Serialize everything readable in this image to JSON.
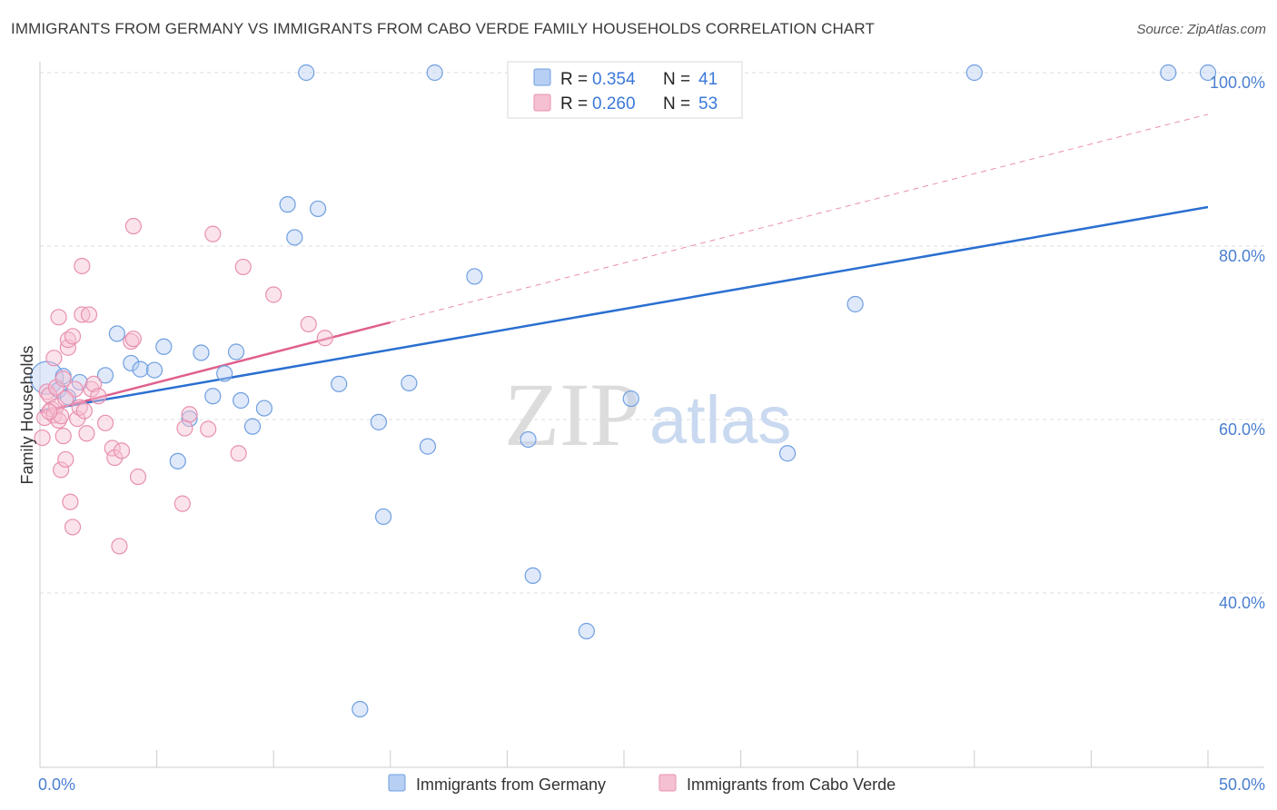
{
  "header": {
    "title": "IMMIGRANTS FROM GERMANY VS IMMIGRANTS FROM CABO VERDE FAMILY HOUSEHOLDS CORRELATION CHART",
    "source": "Source: ZipAtlas.com"
  },
  "watermark": {
    "zip": "ZIP",
    "atlas": "atlas"
  },
  "colors": {
    "blue": "#6f9fe0",
    "blue_fill": "#b7cff3",
    "blue_line": "#2a6fd0",
    "pink": "#e890b0",
    "pink_fill": "#f6c0d3",
    "pink_line": "#e0608e",
    "grid": "#dddddd",
    "tick_text": "#4a7fd0"
  },
  "legend": {
    "r_label": "R =",
    "n_label": "N =",
    "series": [
      {
        "r": "0.354",
        "n": "41"
      },
      {
        "r": "0.260",
        "n": "53"
      }
    ]
  },
  "bottom_legend": [
    "Immigrants from Germany",
    "Immigrants from Cabo Verde"
  ],
  "chart_data": {
    "type": "scatter",
    "title": "IMMIGRANTS FROM GERMANY VS IMMIGRANTS FROM CABO VERDE FAMILY HOUSEHOLDS CORRELATION CHART",
    "xlabel": "",
    "ylabel": "Family Households",
    "xlim": [
      0,
      50
    ],
    "ylim": [
      18,
      103
    ],
    "x_tick_labels": [
      "0.0%",
      "50.0%"
    ],
    "y_ticks": [
      40,
      60,
      80,
      100
    ],
    "y_tick_labels": [
      "40.0%",
      "60.0%",
      "80.0%",
      "100.0%"
    ],
    "grid": true,
    "legend_position": "top-center",
    "series": [
      {
        "name": "Immigrants from Germany",
        "color": "#6f9fe0",
        "trend": {
          "x": [
            0,
            50
          ],
          "y": [
            61.0,
            84.5
          ],
          "dashed_extension": false
        },
        "points": [
          [
            0.3,
            64.8
          ],
          [
            0.8,
            63.4
          ],
          [
            1.2,
            62.6
          ],
          [
            1.7,
            64.3
          ],
          [
            2.8,
            65.1
          ],
          [
            3.3,
            69.9
          ],
          [
            3.9,
            66.5
          ],
          [
            4.3,
            65.8
          ],
          [
            4.9,
            65.7
          ],
          [
            5.3,
            68.4
          ],
          [
            5.9,
            55.2
          ],
          [
            6.4,
            60.1
          ],
          [
            6.9,
            67.7
          ],
          [
            7.4,
            62.7
          ],
          [
            7.9,
            65.3
          ],
          [
            8.4,
            67.8
          ],
          [
            8.6,
            62.2
          ],
          [
            9.1,
            59.2
          ],
          [
            9.6,
            61.3
          ],
          [
            10.6,
            84.8
          ],
          [
            10.9,
            81.0
          ],
          [
            11.4,
            100.0
          ],
          [
            11.9,
            84.3
          ],
          [
            12.8,
            64.1
          ],
          [
            13.7,
            26.6
          ],
          [
            14.5,
            59.7
          ],
          [
            14.7,
            48.8
          ],
          [
            15.8,
            64.2
          ],
          [
            16.6,
            56.9
          ],
          [
            16.9,
            100.0
          ],
          [
            18.6,
            76.5
          ],
          [
            20.9,
            57.7
          ],
          [
            21.1,
            42.0
          ],
          [
            23.4,
            35.6
          ],
          [
            25.3,
            62.4
          ],
          [
            32.0,
            56.1
          ],
          [
            34.9,
            73.3
          ],
          [
            40.0,
            100.0
          ],
          [
            48.3,
            100.0
          ],
          [
            50.0,
            100.0
          ],
          [
            1.0,
            65.0
          ]
        ]
      },
      {
        "name": "Immigrants from Cabo Verde",
        "color": "#e890b0",
        "trend": {
          "x": [
            0,
            15
          ],
          "y": [
            60.8,
            71.2
          ],
          "dashed_to": [
            50,
            95.2
          ]
        },
        "points": [
          [
            0.1,
            57.9
          ],
          [
            0.2,
            60.2
          ],
          [
            0.3,
            63.2
          ],
          [
            0.4,
            62.8
          ],
          [
            0.5,
            61.2
          ],
          [
            0.6,
            60.5
          ],
          [
            0.6,
            67.1
          ],
          [
            0.7,
            61.5
          ],
          [
            0.7,
            63.7
          ],
          [
            0.8,
            59.9
          ],
          [
            0.8,
            71.8
          ],
          [
            0.9,
            54.2
          ],
          [
            0.9,
            60.4
          ],
          [
            1.0,
            58.1
          ],
          [
            1.0,
            64.7
          ],
          [
            1.1,
            55.4
          ],
          [
            1.2,
            68.3
          ],
          [
            1.2,
            69.2
          ],
          [
            1.3,
            50.5
          ],
          [
            1.4,
            69.6
          ],
          [
            1.4,
            47.6
          ],
          [
            1.5,
            63.5
          ],
          [
            1.6,
            60.1
          ],
          [
            1.7,
            61.4
          ],
          [
            1.8,
            72.1
          ],
          [
            1.8,
            77.7
          ],
          [
            1.9,
            61.0
          ],
          [
            2.0,
            58.4
          ],
          [
            2.1,
            72.1
          ],
          [
            2.2,
            63.5
          ],
          [
            2.3,
            64.1
          ],
          [
            2.5,
            62.7
          ],
          [
            2.8,
            59.6
          ],
          [
            3.1,
            56.7
          ],
          [
            3.2,
            55.6
          ],
          [
            3.4,
            45.4
          ],
          [
            3.5,
            56.4
          ],
          [
            3.9,
            69.0
          ],
          [
            4.0,
            69.3
          ],
          [
            4.0,
            82.3
          ],
          [
            4.2,
            53.4
          ],
          [
            6.1,
            50.3
          ],
          [
            6.2,
            59.0
          ],
          [
            6.4,
            60.6
          ],
          [
            7.2,
            58.9
          ],
          [
            7.4,
            81.4
          ],
          [
            8.5,
            56.1
          ],
          [
            8.7,
            77.6
          ],
          [
            10.0,
            74.4
          ],
          [
            11.5,
            71.0
          ],
          [
            12.2,
            69.4
          ],
          [
            0.4,
            60.9
          ],
          [
            1.1,
            62.4
          ]
        ]
      }
    ]
  }
}
